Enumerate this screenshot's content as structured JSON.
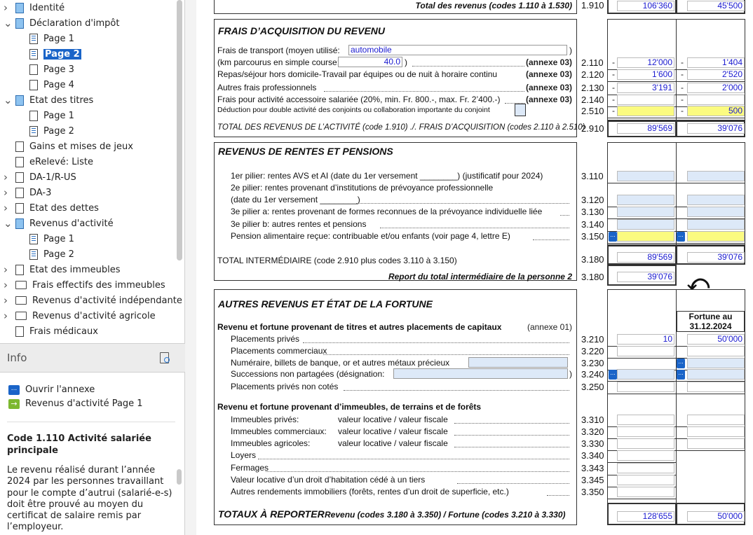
{
  "tree": [
    {
      "label": "Identité",
      "icon": "blue",
      "chev": ">",
      "indent": 0
    },
    {
      "label": "Déclaration d'impôt",
      "icon": "blue",
      "chev": "v",
      "indent": 0
    },
    {
      "label": "Page 1",
      "icon": "lines",
      "indent": 1
    },
    {
      "label": "Page 2",
      "icon": "lines",
      "indent": 1,
      "selected": true
    },
    {
      "label": "Page 3",
      "icon": "empty",
      "indent": 1
    },
    {
      "label": "Page 4",
      "icon": "empty",
      "indent": 1
    },
    {
      "label": "Etat des titres",
      "icon": "blue",
      "chev": "v",
      "indent": 0
    },
    {
      "label": "Page 1",
      "icon": "empty",
      "indent": 1
    },
    {
      "label": "Page 2",
      "icon": "lines",
      "indent": 1
    },
    {
      "label": "Gains et mises de jeux",
      "icon": "doc",
      "indent": 0
    },
    {
      "label": "eRelevé: Liste",
      "icon": "doc",
      "indent": 0
    },
    {
      "label": "DA-1/R-US",
      "icon": "doc",
      "chev": ">",
      "indent": 0
    },
    {
      "label": "DA-3",
      "icon": "doc",
      "chev": ">",
      "indent": 0
    },
    {
      "label": "Etat des dettes",
      "icon": "doc",
      "chev": ">",
      "indent": 0
    },
    {
      "label": "Revenus d'activité",
      "icon": "blue",
      "chev": "v",
      "indent": 0
    },
    {
      "label": "Page 1",
      "icon": "lines",
      "indent": 1
    },
    {
      "label": "Page 2",
      "icon": "lines",
      "indent": 1
    },
    {
      "label": "Etat des immeubles",
      "icon": "doc",
      "chev": ">",
      "indent": 0
    },
    {
      "label": "Frais effectifs des immeubles",
      "icon": "folder",
      "chev": ">",
      "indent": 0
    },
    {
      "label": "Revenus d'activité indépendante",
      "icon": "folder",
      "chev": ">",
      "indent": 0
    },
    {
      "label": "Revenus d'activité agricole",
      "icon": "folder",
      "chev": ">",
      "indent": 0
    },
    {
      "label": "Frais médicaux",
      "icon": "doc",
      "indent": 0
    }
  ],
  "info": {
    "title": "Info",
    "open_annex": "Ouvrir l'annexe",
    "goto_link": "Revenus d'activité Page 1",
    "code_title": "Code 1.110 Activité salariée principale",
    "text": "Le revenu réalisé durant l’année 2024 par les personnes travaillant pour le compte d’autrui (salarié-e-s) doit être prouvé au moyen du certificat de salaire remis par l’employeur."
  },
  "form": {
    "total_revenus": {
      "label": "Total des revenus (codes 1.110 à 1.530)",
      "code": "1.910",
      "v1": "106'360",
      "v2": "45'500"
    },
    "frais_title": "FRAIS D’ACQUISITION DU REVENU",
    "transport_label": "Frais de transport (moyen utilisé:",
    "transport_value": "automobile",
    "km_label": "(km parcourus en simple course:",
    "km_value": "40.0",
    "frais_rows": [
      {
        "label": "",
        "annex": "(annexe 03)",
        "code": "2.110",
        "v1": "12'000",
        "v2": "1'404"
      },
      {
        "label": "Repas/séjour hors domicile-Travail par équipes ou de nuit à horaire continu",
        "annex": "(annexe 03)",
        "code": "2.120",
        "v1": "1'600",
        "v2": "2'520"
      },
      {
        "label": "Autres frais professionnels",
        "annex": "(annexe 03)",
        "code": "2.130",
        "v1": "3'191",
        "v2": "2'000"
      },
      {
        "label": "Frais pour activité accessoire salariée (20%, min. Fr. 800.-, max. Fr. 2’400.-)",
        "annex": "(annexe 03)",
        "code": "2.140",
        "v1": "",
        "v2": ""
      },
      {
        "label": "Déduction pour double activité des conjoints ou collaboration importante du conjoint",
        "annex": "",
        "code": "2.510",
        "v1": "",
        "v2": "500"
      }
    ],
    "total_activite": {
      "label": "TOTAL DES REVENUS DE L’ACTIVITÉ (code 1.910) ./. FRAIS D’ACQUISITION (codes 2.110 à 2.510)",
      "code": "2.910",
      "v1": "89'569",
      "v2": "39'076"
    },
    "rentes_title": "REVENUS DE RENTES ET PENSIONS",
    "rentes_rows": [
      {
        "label": "1er pilier: rentes AVS et AI (date du 1er versement ________) (justificatif pour 2024)",
        "code": "3.110"
      },
      {
        "label": "2e pilier: rentes provenant d’institutions de prévoyance professionnelle",
        "code": ""
      },
      {
        "label": "(date du 1er versement ________)",
        "code": "3.120"
      },
      {
        "label": "3e pilier a: rentes provenant de formes reconnues de la prévoyance individuelle liée",
        "code": "3.130"
      },
      {
        "label": "3e pilier b: autres rentes et pensions",
        "code": "3.140"
      },
      {
        "label": "Pension alimentaire reçue: contribuable et/ou enfants (voir page 4, lettre E)",
        "code": "3.150"
      }
    ],
    "total_inter": {
      "label": "TOTAL INTERMÉDIAIRE (code 2.910 plus codes 3.110 à 3.150)",
      "code": "3.180",
      "v1": "89'569",
      "v2": "39'076"
    },
    "report": {
      "label": "Report du total intermédiaire de la personne 2",
      "code": "3.180",
      "v1": "39'076"
    },
    "autres_title": "AUTRES REVENUS ET ÉTAT DE LA FORTUNE",
    "fortune_header": "Fortune au 31.12.2024",
    "titres_heading": "Revenu et fortune provenant de titres et autres placements de capitaux",
    "titres_annex": "(annexe 01)",
    "titres_rows": [
      {
        "label": "Placements privés",
        "code": "3.210",
        "v1": "10",
        "v2": "50'000"
      },
      {
        "label": "Placements commerciaux",
        "code": "3.220",
        "v1": "",
        "v2": ""
      },
      {
        "label": "Numéraire, billets de banque, or et autres métaux précieux",
        "code": "3.230",
        "v1": "",
        "v2": ""
      },
      {
        "label": "Successions non partagées (désignation:",
        "code": "3.240",
        "v1": "",
        "v2": ""
      },
      {
        "label": "Placements privés non cotés",
        "code": "3.250",
        "v1": "",
        "v2": ""
      }
    ],
    "immeubles_heading": "Revenu et fortune provenant d’immeubles, de terrains et de forêts",
    "immeubles_rows": [
      {
        "label": "Immeubles privés:",
        "sub": "valeur locative / valeur fiscale",
        "code": "3.310"
      },
      {
        "label": "Immeubles commerciaux:",
        "sub": "valeur locative / valeur fiscale",
        "code": "3.320"
      },
      {
        "label": "Immeubles agricoles:",
        "sub": "valeur locative / valeur fiscale",
        "code": "3.330"
      },
      {
        "label": "Loyers",
        "sub": "",
        "code": "3.340"
      },
      {
        "label": "Fermages",
        "sub": "",
        "code": "3.343"
      },
      {
        "label": "Valeur locative d’un droit d’habitation cédé à un tiers",
        "sub": "",
        "code": "3.345"
      },
      {
        "label": "Autres rendements immobiliers (forêts, rentes d’un droit de superficie, etc.)",
        "sub": "",
        "code": "3.350"
      }
    ],
    "totaux": {
      "label": "TOTAUX À REPORTER",
      "sub": "Revenu (codes 3.180 à 3.350) / Fortune (codes 3.210 à 3.330)",
      "v1": "128'655",
      "v2": "50'000"
    }
  },
  "colors": {
    "accent": "#1a64c8",
    "value": "#1a1ad0",
    "yellow": "#fbfb80",
    "field": "#dde9f8"
  }
}
